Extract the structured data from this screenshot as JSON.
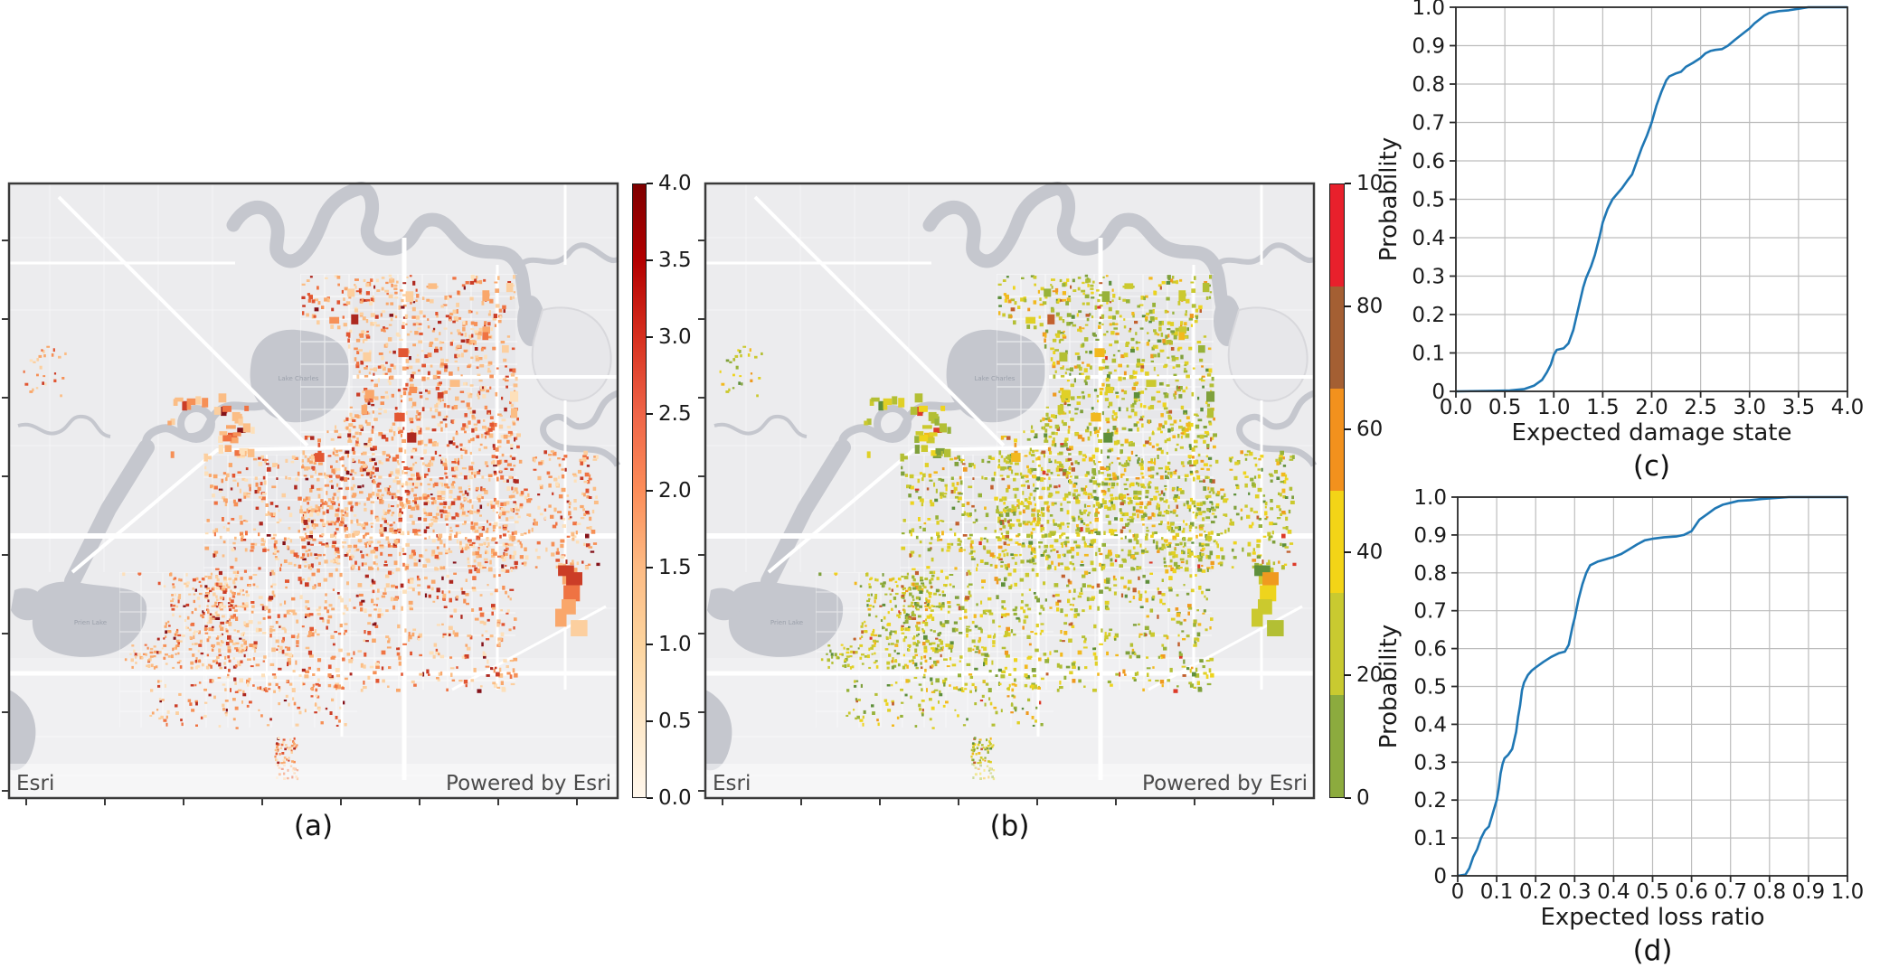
{
  "colors": {
    "figure_bg": "#ffffff",
    "land": "#ececee",
    "land_dark": "#e4e4e7",
    "south_light": "#f1f1f3",
    "water": "#c5c7ce",
    "road": "#ffffff",
    "frame": "#3a3a3a",
    "curve": "#1f77b4",
    "grid": "#bdbdbd",
    "tick_text": "#1a1a1a",
    "esri_text": "#4a4a4a",
    "map_label_text": "#9ba0ab"
  },
  "map_a": {
    "panel_tag": "(a)",
    "attribution_left": "Esri",
    "attribution_right": "Powered by Esri",
    "water_labels": {
      "lake": "Lake Charles",
      "prien": "Prien Lake"
    },
    "building_palette": [
      "#fde0ba",
      "#fccf9f",
      "#fbbd85",
      "#f9a76b",
      "#f69056",
      "#ef7343",
      "#e25632",
      "#cb3d27",
      "#ad2820",
      "#841219"
    ],
    "building_weights": [
      0.12,
      0.15,
      0.16,
      0.15,
      0.12,
      0.1,
      0.08,
      0.06,
      0.04,
      0.02
    ],
    "colorbar": {
      "type": "continuous",
      "gradient_bottom_to_top": [
        "#fff7ec",
        "#fee8c8",
        "#fdd49e",
        "#fdbb84",
        "#fc8d59",
        "#ef6548",
        "#d7301f",
        "#b30000",
        "#7f0000"
      ],
      "tick_labels_top_to_bottom": [
        "4.0",
        "3.5",
        "3.0",
        "2.5",
        "2.0",
        "1.5",
        "1.0",
        "0.5",
        "0.0"
      ]
    }
  },
  "map_b": {
    "panel_tag": "(b)",
    "attribution_left": "Esri",
    "attribution_right": "Powered by Esri",
    "water_labels": {
      "lake": "Lake Charles",
      "prien": "Prien Lake"
    },
    "building_palette": [
      "#7fa03c",
      "#97b239",
      "#b3bf34",
      "#cbc92e",
      "#e0d026",
      "#eed41d",
      "#f2b91e",
      "#ef9a20",
      "#5e8f3b",
      "#c2602f",
      "#dd3a28"
    ],
    "building_weights": [
      0.08,
      0.12,
      0.16,
      0.17,
      0.15,
      0.1,
      0.08,
      0.05,
      0.05,
      0.03,
      0.01
    ],
    "colorbar": {
      "type": "discrete",
      "segments_bottom_to_top": [
        "#8cab3e",
        "#c9ca30",
        "#f3d417",
        "#f2911d",
        "#a45f33",
        "#e8202c"
      ],
      "tick_labels_top_to_bottom": [
        "10",
        "80",
        "60",
        "40",
        "20",
        "0"
      ]
    }
  },
  "chart_data": [
    {
      "type": "line",
      "panel_tag": "(c)",
      "xlabel": "Expected damage state",
      "ylabel": "Probability",
      "xlim": [
        0,
        4
      ],
      "ylim": [
        0,
        1
      ],
      "xticks": [
        "0.0",
        "0.5",
        "1.0",
        "1.5",
        "2.0",
        "2.5",
        "3.0",
        "3.5",
        "4.0"
      ],
      "yticks": [
        "0",
        "0.1",
        "0.2",
        "0.3",
        "0.4",
        "0.5",
        "0.6",
        "0.7",
        "0.8",
        "0.9",
        "1.0"
      ],
      "grid": true,
      "legend": null,
      "line_color": "#1f77b4",
      "x": [
        0,
        0.55,
        0.7,
        0.8,
        0.88,
        0.93,
        0.97,
        1.0,
        1.03,
        1.1,
        1.15,
        1.2,
        1.25,
        1.3,
        1.33,
        1.38,
        1.42,
        1.47,
        1.5,
        1.55,
        1.6,
        1.65,
        1.7,
        1.75,
        1.8,
        1.85,
        1.9,
        1.95,
        2.0,
        2.05,
        2.1,
        2.15,
        2.18,
        2.25,
        2.3,
        2.35,
        2.42,
        2.5,
        2.55,
        2.6,
        2.65,
        2.72,
        2.78,
        2.85,
        2.9,
        2.95,
        3.0,
        3.05,
        3.1,
        3.15,
        3.2,
        3.3,
        3.4,
        3.5,
        3.6,
        4.0
      ],
      "y": [
        0,
        0.002,
        0.006,
        0.015,
        0.03,
        0.05,
        0.07,
        0.095,
        0.108,
        0.112,
        0.125,
        0.16,
        0.215,
        0.27,
        0.295,
        0.325,
        0.355,
        0.405,
        0.44,
        0.475,
        0.5,
        0.515,
        0.53,
        0.548,
        0.565,
        0.6,
        0.635,
        0.665,
        0.7,
        0.745,
        0.78,
        0.81,
        0.82,
        0.828,
        0.832,
        0.845,
        0.855,
        0.868,
        0.88,
        0.886,
        0.889,
        0.891,
        0.9,
        0.915,
        0.925,
        0.935,
        0.945,
        0.958,
        0.968,
        0.978,
        0.985,
        0.99,
        0.992,
        0.996,
        1.0,
        1.0
      ]
    },
    {
      "type": "line",
      "panel_tag": "(d)",
      "xlabel": "Expected loss ratio",
      "ylabel": "Probability",
      "xlim": [
        0,
        1
      ],
      "ylim": [
        0,
        1
      ],
      "xticks": [
        "0",
        "0.1",
        "0.2",
        "0.3",
        "0.4",
        "0.5",
        "0.6",
        "0.7",
        "0.8",
        "0.9",
        "1.0"
      ],
      "yticks": [
        "0",
        "0.1",
        "0.2",
        "0.3",
        "0.4",
        "0.5",
        "0.6",
        "0.7",
        "0.8",
        "0.9",
        "1.0"
      ],
      "grid": true,
      "legend": null,
      "line_color": "#1f77b4",
      "x": [
        0,
        0.02,
        0.03,
        0.04,
        0.05,
        0.06,
        0.07,
        0.08,
        0.09,
        0.1,
        0.105,
        0.11,
        0.115,
        0.12,
        0.13,
        0.14,
        0.15,
        0.155,
        0.16,
        0.165,
        0.17,
        0.18,
        0.19,
        0.2,
        0.22,
        0.24,
        0.26,
        0.275,
        0.285,
        0.295,
        0.3,
        0.31,
        0.32,
        0.33,
        0.34,
        0.36,
        0.38,
        0.4,
        0.42,
        0.44,
        0.46,
        0.48,
        0.5,
        0.53,
        0.56,
        0.58,
        0.6,
        0.61,
        0.62,
        0.64,
        0.66,
        0.68,
        0.7,
        0.72,
        0.75,
        0.78,
        0.82,
        0.85,
        1.0
      ],
      "y": [
        0,
        0.003,
        0.02,
        0.05,
        0.07,
        0.1,
        0.12,
        0.13,
        0.165,
        0.2,
        0.23,
        0.27,
        0.295,
        0.31,
        0.32,
        0.335,
        0.38,
        0.42,
        0.45,
        0.49,
        0.51,
        0.53,
        0.542,
        0.55,
        0.565,
        0.578,
        0.588,
        0.592,
        0.61,
        0.66,
        0.68,
        0.73,
        0.77,
        0.8,
        0.82,
        0.83,
        0.836,
        0.842,
        0.85,
        0.862,
        0.875,
        0.886,
        0.89,
        0.894,
        0.896,
        0.9,
        0.91,
        0.925,
        0.94,
        0.955,
        0.97,
        0.98,
        0.985,
        0.99,
        0.992,
        0.995,
        0.998,
        1.0,
        1.0
      ]
    }
  ]
}
